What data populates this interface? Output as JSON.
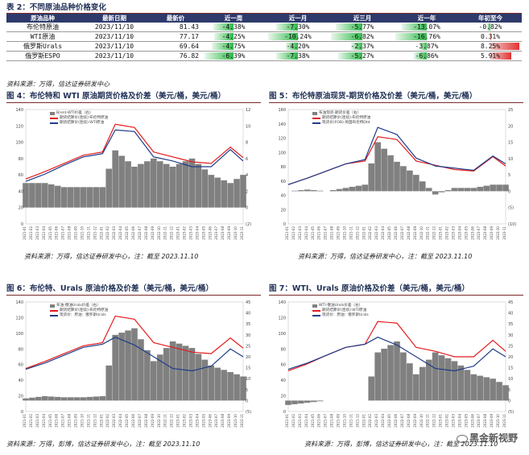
{
  "table_title": "表 2：不同原油品种价格变化",
  "table": {
    "headers": [
      "原油品种",
      "最新日期",
      "最新价",
      "近一周",
      "近一月",
      "近三月",
      "近一年",
      "年初至今"
    ],
    "rows": [
      {
        "name": "布伦特原油",
        "date": "2023/11/10",
        "price": "81.43",
        "w1": "-4.38%",
        "m1": "-7.30%",
        "m3": "-5.77%",
        "y1": "-13.07%",
        "ytd": "-0.82%"
      },
      {
        "name": "WTI原油",
        "date": "2023/11/10",
        "price": "77.17",
        "w1": "-4.25%",
        "m1": "-10.24%",
        "m3": "-6.82%",
        "y1": "-16.76%",
        "ytd": "0.31%"
      },
      {
        "name": "俄罗斯Urals",
        "date": "2023/11/10",
        "price": "69.64",
        "w1": "-4.75%",
        "m1": "-4.20%",
        "m3": "-2.37%",
        "y1": "-3.87%",
        "ytd": "8.25%"
      },
      {
        "name": "俄罗斯ESPO",
        "date": "2023/11/10",
        "price": "76.82",
        "w1": "-6.39%",
        "m1": "-7.38%",
        "m3": "-5.27%",
        "y1": "-6.86%",
        "ytd": "5.91%"
      }
    ],
    "colors": {
      "header_bg": "#2e3a6b",
      "negative": "#2fb84a",
      "positive": "#e23434"
    }
  },
  "source_table": "资料来源：万得，信达证券研发中心",
  "figures": [
    {
      "title": "图 4：布伦特和 WTI 原油期货价格及价差（美元/桶，美元/桶）",
      "source": "资料来源：万得，信达证券研发中心，注：截至 2023.11.10",
      "legend": [
        "Brent-WTI价差（右）",
        "期货结算价(连续):布伦特原油",
        "期货结算价(连续):WTI原油"
      ],
      "left_ticks": [
        "140",
        "120",
        "100",
        "80",
        "60",
        "40",
        "20",
        "0"
      ],
      "right_ticks": [
        "12",
        "10",
        "8",
        "6",
        "4",
        "2",
        "0",
        "(2)"
      ],
      "x_ticks": [
        "2021-01",
        "2021-02",
        "2021-03",
        "2021-04",
        "2021-05",
        "2021-06",
        "2021-07",
        "2021-08",
        "2021-09",
        "2021-10",
        "2021-11",
        "2021-12",
        "2022-01",
        "2022-02",
        "2022-03",
        "2022-04",
        "2022-05",
        "2022-06",
        "2022-07",
        "2022-08",
        "2022-09",
        "2022-10",
        "2022-11",
        "2022-12",
        "2023-01",
        "2023-02",
        "2023-03",
        "2023-04",
        "2023-05",
        "2023-06",
        "2023-07",
        "2023-08",
        "2023-09",
        "2023-10",
        "2023-11"
      ]
    },
    {
      "title": "图 5：布伦特原油现货-期货价格及价差（美元/桶，美元/桶）",
      "source": "资料来源：万得，信达证券研发中心，注：截至 2023.11.10",
      "legend": [
        "布油现货-期货价差（右）",
        "期货结算价(连续):布伦特原油",
        "现货价(FOB):英国布伦特Dtd"
      ],
      "left_ticks": [
        "160",
        "140",
        "120",
        "100",
        "80",
        "60",
        "40",
        "20",
        "0"
      ],
      "right_ticks": [
        "25",
        "20",
        "15",
        "10",
        "5",
        "0",
        "(5)",
        "(10)"
      ],
      "x_ticks": [
        "2021-01",
        "2021-02",
        "2021-03",
        "2021-04",
        "2021-05",
        "2021-06",
        "2021-07",
        "2021-08",
        "2021-09",
        "2021-10",
        "2021-11",
        "2021-12",
        "2022-01",
        "2022-02",
        "2022-03",
        "2022-04",
        "2022-05",
        "2022-06",
        "2022-07",
        "2022-08",
        "2022-09",
        "2022-10",
        "2022-11",
        "2022-12",
        "2023-01",
        "2023-02",
        "2023-03",
        "2023-04",
        "2023-05",
        "2023-06",
        "2023-07",
        "2023-08",
        "2023-09",
        "2023-10",
        "2023-11"
      ]
    },
    {
      "title": "图 6：布伦特、Urals 原油价格及价差（美元/桶，美元/桶）",
      "source": "资料来源：万得，彭博，信达证券研发中心，注：截至 2023.11.10",
      "legend": [
        "布油-俄油Urals价差（右）",
        "期货结算价(连续):布伦特原油",
        "现货价：原油：俄罗斯Urals"
      ],
      "left_ticks": [
        "140",
        "120",
        "100",
        "80",
        "60",
        "40",
        "20",
        "0"
      ],
      "right_ticks": [
        "45",
        "40",
        "35",
        "30",
        "25",
        "20",
        "15",
        "10",
        "5",
        "0",
        "(5)"
      ],
      "x_ticks": [
        "2021-01",
        "2021-02",
        "2021-03",
        "2021-04",
        "2021-05",
        "2021-06",
        "2021-07",
        "2021-08",
        "2021-09",
        "2021-10",
        "2021-11",
        "2021-12",
        "2022-01",
        "2022-02",
        "2022-03",
        "2022-04",
        "2022-05",
        "2022-06",
        "2022-07",
        "2022-08",
        "2022-09",
        "2022-10",
        "2022-11",
        "2022-12",
        "2023-01",
        "2023-02",
        "2023-03",
        "2023-04",
        "2023-05",
        "2023-06",
        "2023-07",
        "2023-08",
        "2023-09",
        "2023-10",
        "2023-11"
      ]
    },
    {
      "title": "图 7：WTI、Urals 原油价格及价差（美元/桶，美元/桶）",
      "source": "资料来源：万得，彭博，信达证券研发中心，注：截至 2023.11.10",
      "legend": [
        "WTI-俄油Urals价差（右）",
        "期货结算价(连续):WTI原油",
        "现货价：原油：俄罗斯Urals"
      ],
      "left_ticks": [
        "140",
        "120",
        "100",
        "80",
        "60",
        "40",
        "20",
        "0"
      ],
      "right_ticks": [
        "45",
        "40",
        "35",
        "30",
        "25",
        "20",
        "15",
        "10",
        "5",
        "0",
        "(5)"
      ],
      "x_ticks": [
        "2021-01",
        "2021-02",
        "2021-03",
        "2021-04",
        "2021-05",
        "2021-06",
        "2021-07",
        "2021-08",
        "2021-09",
        "2021-10",
        "2021-11",
        "2021-12",
        "2022-01",
        "2022-02",
        "2022-03",
        "2022-04",
        "2022-05",
        "2022-06",
        "2022-07",
        "2022-08",
        "2022-09",
        "2022-10",
        "2022-11",
        "2022-12",
        "2023-01",
        "2023-02",
        "2023-03",
        "2023-04",
        "2023-05",
        "2023-06",
        "2023-07",
        "2023-08",
        "2023-09",
        "2023-10",
        "2023-11"
      ]
    }
  ],
  "chart_data": [
    {
      "type": "line",
      "x": [
        "2021-01",
        "2021-04",
        "2021-07",
        "2021-10",
        "2022-01",
        "2022-03",
        "2022-06",
        "2022-09",
        "2022-12",
        "2023-03",
        "2023-06",
        "2023-09",
        "2023-11"
      ],
      "series": [
        {
          "name": "期货结算价(连续):布伦特原油",
          "values": [
            55,
            64,
            74,
            84,
            88,
            122,
            118,
            88,
            82,
            76,
            74,
            94,
            81
          ]
        },
        {
          "name": "期货结算价(连续):WTI原油",
          "values": [
            52,
            61,
            72,
            82,
            86,
            115,
            113,
            82,
            77,
            70,
            70,
            91,
            77
          ]
        },
        {
          "name": "Brent-WTI价差（右）",
          "values": [
            3,
            3,
            2.5,
            2.5,
            2.5,
            7,
            5,
            6,
            5,
            6,
            4,
            3,
            4
          ]
        }
      ],
      "ylim": [
        0,
        140
      ],
      "y2lim": [
        -2,
        12
      ]
    },
    {
      "type": "line",
      "x": [
        "2021-01",
        "2021-04",
        "2021-07",
        "2021-10",
        "2022-01",
        "2022-03",
        "2022-06",
        "2022-09",
        "2022-12",
        "2023-03",
        "2023-06",
        "2023-09",
        "2023-11"
      ],
      "series": [
        {
          "name": "期货结算价(连续):布伦特原油",
          "values": [
            55,
            64,
            74,
            84,
            88,
            122,
            118,
            88,
            82,
            76,
            74,
            94,
            81
          ]
        },
        {
          "name": "现货价(FOB):英国布伦特Dtd",
          "values": [
            55,
            64,
            74,
            84,
            90,
            135,
            125,
            92,
            81,
            78,
            75,
            95,
            84
          ]
        },
        {
          "name": "布油现货-期货价差（右）",
          "values": [
            0,
            0.5,
            0,
            1,
            2,
            15,
            9,
            5,
            -1,
            1,
            1,
            2,
            2
          ]
        }
      ],
      "ylim": [
        0,
        160
      ],
      "y2lim": [
        -10,
        25
      ]
    },
    {
      "type": "line",
      "x": [
        "2021-01",
        "2021-04",
        "2021-07",
        "2021-10",
        "2022-01",
        "2022-03",
        "2022-06",
        "2022-09",
        "2022-12",
        "2023-03",
        "2023-06",
        "2023-09",
        "2023-11"
      ],
      "series": [
        {
          "name": "期货结算价(连续):布伦特原油",
          "values": [
            55,
            64,
            74,
            84,
            88,
            122,
            118,
            88,
            82,
            76,
            74,
            94,
            81
          ]
        },
        {
          "name": "现货价：原油：俄罗斯Urals",
          "values": [
            54,
            62,
            72,
            82,
            86,
            95,
            85,
            70,
            55,
            52,
            58,
            80,
            70
          ]
        },
        {
          "name": "布油-俄油Urals价差（右）",
          "values": [
            1,
            2,
            1.5,
            1.5,
            2,
            30,
            33,
            18,
            27,
            24,
            16,
            13,
            11
          ]
        }
      ],
      "ylim": [
        0,
        140
      ],
      "y2lim": [
        -5,
        45
      ]
    },
    {
      "type": "line",
      "x": [
        "2021-01",
        "2021-04",
        "2021-07",
        "2021-10",
        "2022-01",
        "2022-03",
        "2022-06",
        "2022-09",
        "2022-12",
        "2023-03",
        "2023-06",
        "2023-09",
        "2023-11"
      ],
      "series": [
        {
          "name": "期货结算价(连续):WTI原油",
          "values": [
            52,
            61,
            72,
            82,
            86,
            115,
            113,
            82,
            77,
            70,
            70,
            91,
            77
          ]
        },
        {
          "name": "现货价：原油：俄罗斯Urals",
          "values": [
            54,
            62,
            72,
            82,
            86,
            95,
            85,
            70,
            55,
            52,
            58,
            80,
            70
          ]
        },
        {
          "name": "WTI-俄油Urals价差（右）",
          "values": [
            -2,
            -1,
            0,
            0,
            0,
            22,
            27,
            12,
            22,
            18,
            12,
            10,
            7
          ]
        }
      ],
      "ylim": [
        0,
        140
      ],
      "y2lim": [
        -5,
        45
      ]
    }
  ],
  "watermark": "黑金新视野"
}
